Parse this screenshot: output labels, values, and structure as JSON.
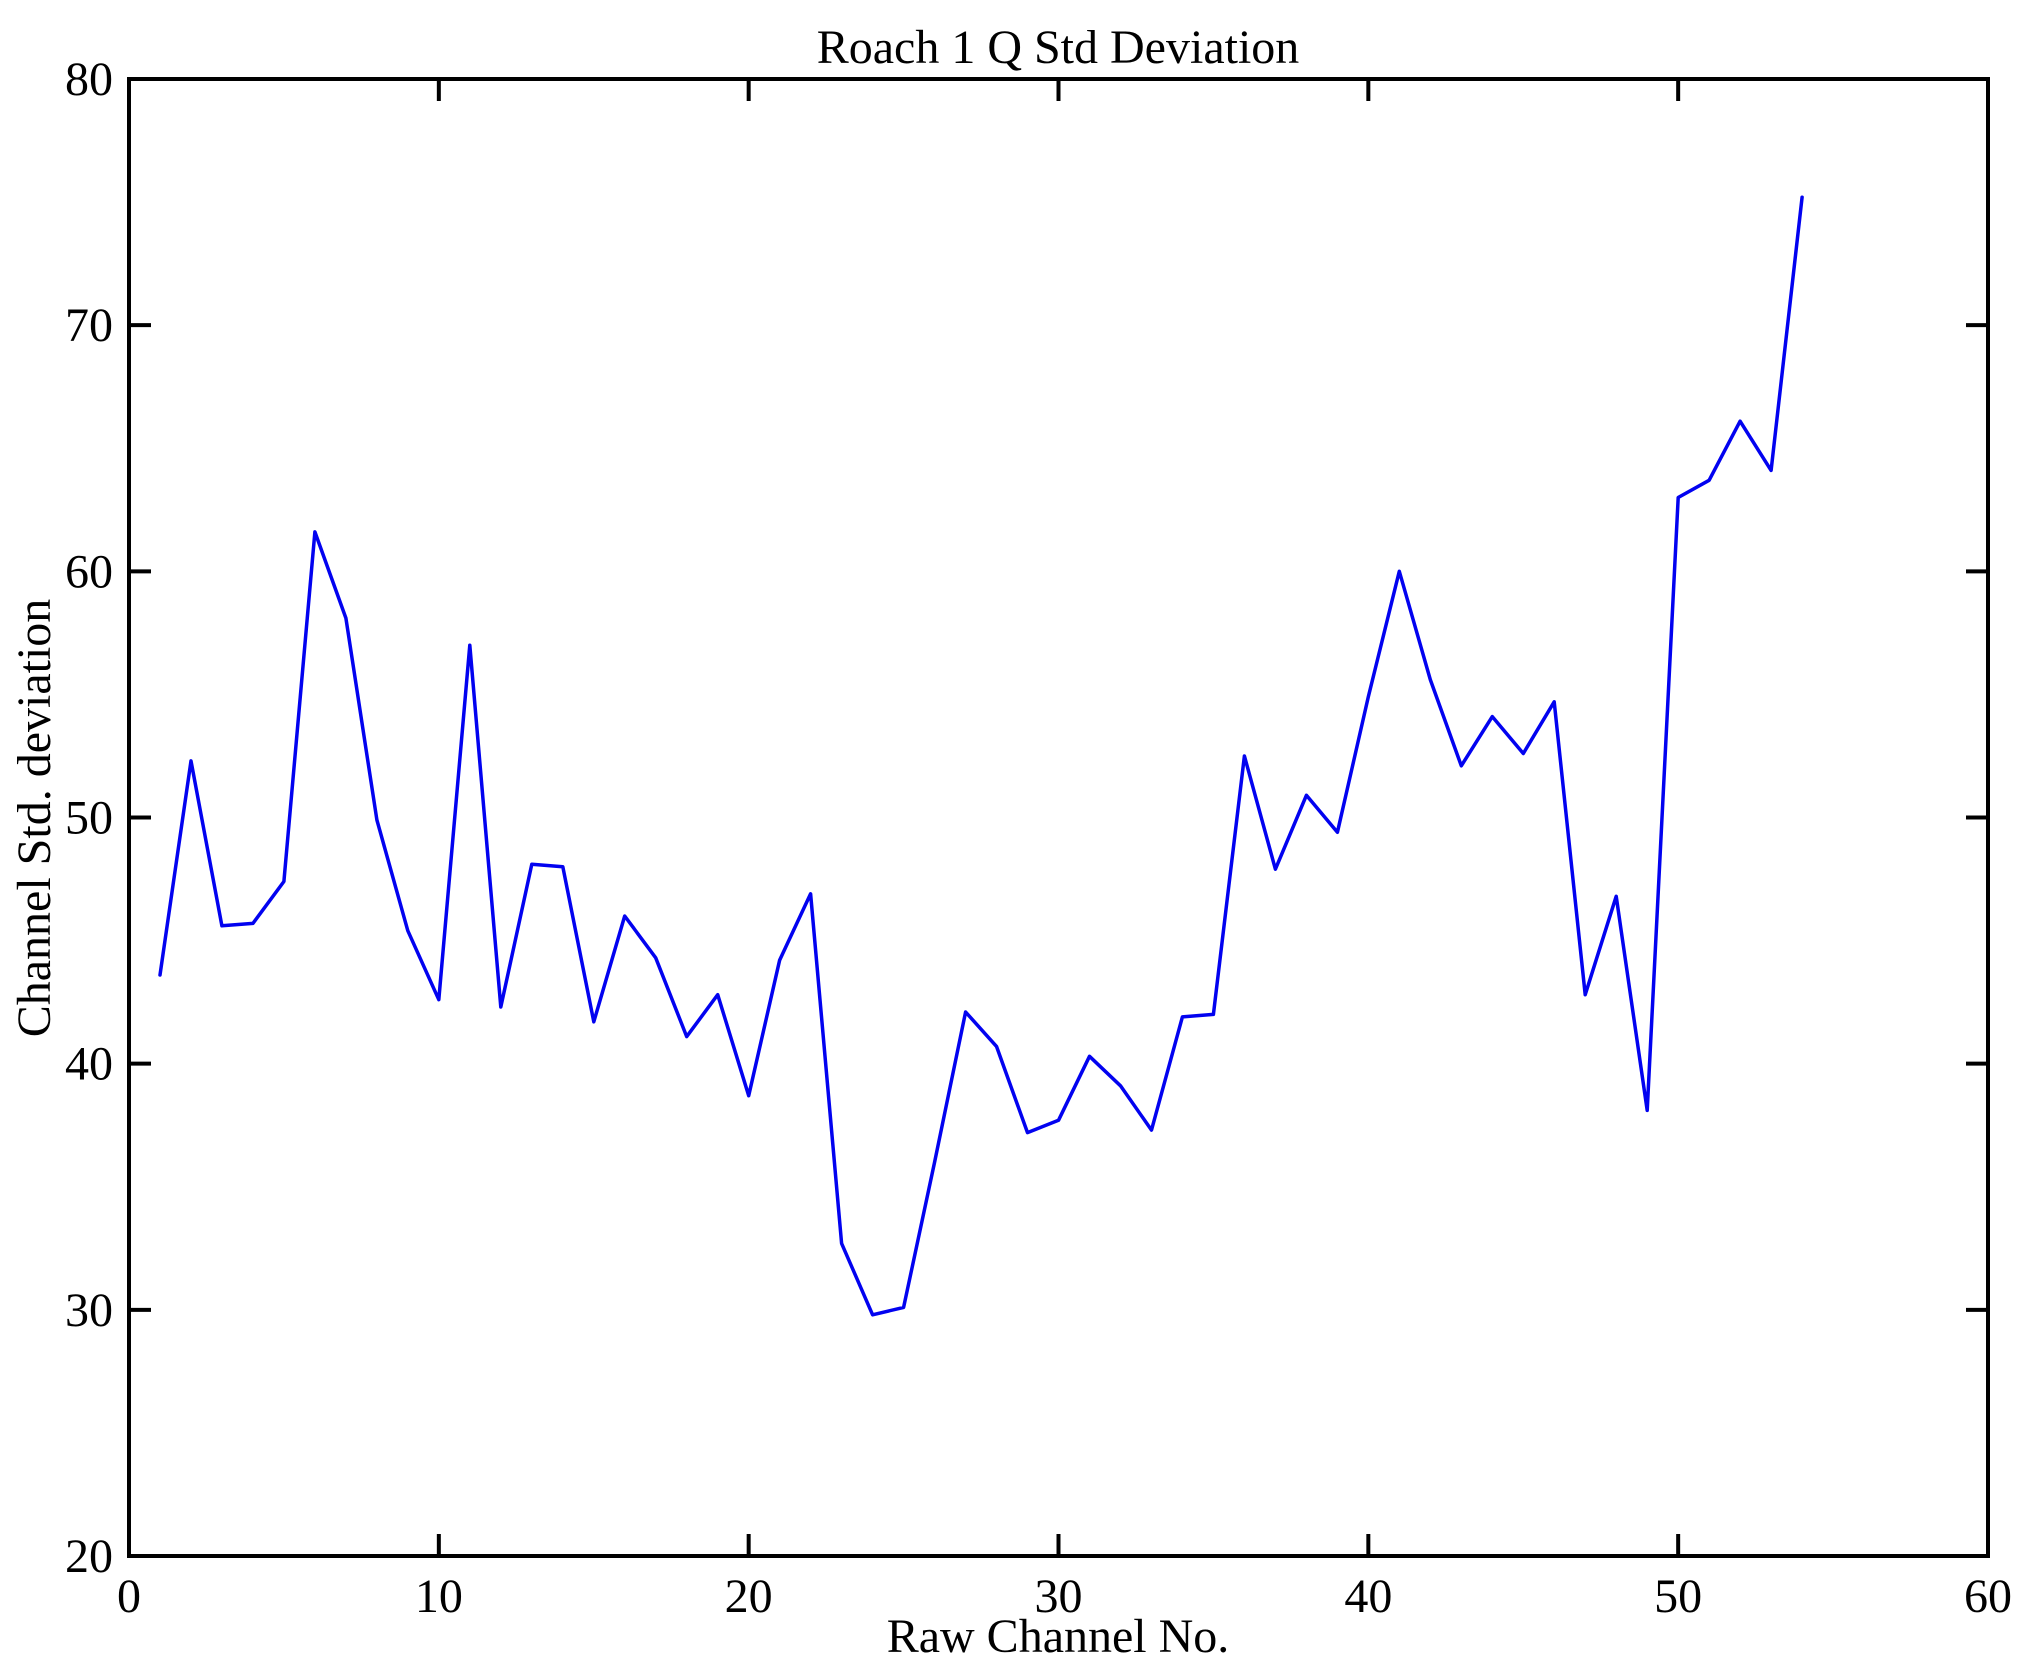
{
  "title": "Roach 1 Q Std Deviation",
  "chart_data": {
    "type": "line",
    "title": "Roach 1 Q Std Deviation",
    "xlabel": "Raw Channel No.",
    "ylabel": "Channel Std. deviation",
    "xlim": [
      0,
      60
    ],
    "ylim": [
      20,
      80
    ],
    "x_ticks": [
      0,
      10,
      20,
      30,
      40,
      50,
      60
    ],
    "y_ticks": [
      20,
      30,
      40,
      50,
      60,
      70,
      80
    ],
    "grid": false,
    "legend": "none",
    "line_color": "#0202f0",
    "axis_color": "#000000",
    "background_color": "#ffffff",
    "series": [
      {
        "x": [
          1,
          2,
          3,
          4,
          5,
          6,
          7,
          8,
          9,
          10,
          11,
          12,
          13,
          14,
          15,
          16,
          17,
          18,
          19,
          20,
          21,
          22,
          23,
          24,
          25,
          26,
          27,
          28,
          29,
          30,
          31,
          32,
          33,
          34,
          35,
          36,
          37,
          38,
          39,
          40,
          41,
          42,
          43,
          44,
          45,
          46,
          47,
          48,
          49,
          50,
          51,
          52,
          53,
          54
        ],
        "y": [
          43.6,
          52.3,
          45.6,
          45.7,
          47.4,
          61.6,
          58.1,
          49.9,
          45.4,
          42.6,
          57.0,
          42.3,
          48.1,
          48.0,
          41.7,
          46.0,
          44.3,
          41.1,
          42.8,
          38.7,
          44.2,
          46.9,
          32.7,
          29.8,
          30.1,
          36.0,
          42.1,
          40.7,
          37.2,
          37.7,
          40.3,
          39.1,
          37.3,
          41.9,
          42.0,
          52.5,
          47.9,
          50.9,
          49.4,
          54.9,
          60.0,
          55.6,
          52.1,
          54.1,
          52.6,
          54.7,
          42.8,
          46.8,
          38.1,
          63.0,
          63.7,
          66.1,
          64.1,
          75.2
        ]
      }
    ]
  }
}
